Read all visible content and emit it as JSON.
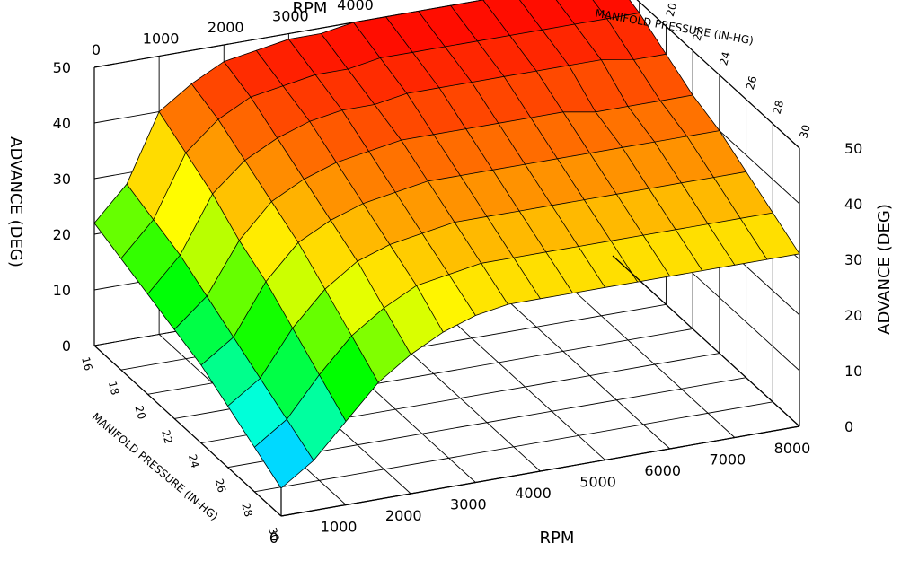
{
  "chart_data": {
    "type": "surface",
    "title": "",
    "x_axis": {
      "label": "RPM",
      "ticks": [
        0,
        1000,
        2000,
        3000,
        4000,
        5000,
        6000,
        7000,
        8000
      ],
      "range": [
        0,
        8000
      ]
    },
    "y_axis": {
      "label": "MANIFOLD PRESSURE (IN-HG)",
      "ticks": [
        16,
        18,
        20,
        22,
        24,
        26,
        28,
        30
      ],
      "range": [
        16,
        30
      ]
    },
    "z_axis": {
      "label": "ADVANCE (DEG)",
      "ticks": [
        0,
        10,
        20,
        30,
        40,
        50
      ],
      "range": [
        0,
        50
      ]
    },
    "grid": true,
    "colormap": [
      "#0000ff",
      "#00ffff",
      "#00ff00",
      "#ffff00",
      "#ff7f00",
      "#ff0000"
    ],
    "rpm": [
      0,
      500,
      1000,
      1500,
      2000,
      2500,
      3000,
      3500,
      4000,
      4500,
      5000,
      5500,
      6000,
      6500,
      7000,
      7500,
      8000
    ],
    "pressure": [
      16,
      18,
      20,
      22,
      24,
      26,
      28,
      30
    ],
    "advance": [
      [
        22,
        28,
        40,
        44,
        47,
        48,
        49,
        49,
        50,
        50,
        50,
        50,
        50,
        50,
        50,
        50,
        50
      ],
      [
        20,
        26,
        37,
        42,
        45,
        46,
        47,
        47,
        48,
        48,
        48,
        48,
        48,
        48,
        48,
        48,
        48
      ],
      [
        18,
        24,
        34,
        39,
        42,
        44,
        45,
        45,
        46,
        46,
        46,
        46,
        46,
        46,
        46,
        45,
        45
      ],
      [
        16,
        21,
        30,
        36,
        39,
        41,
        42,
        43,
        43,
        43,
        43,
        43,
        43,
        42,
        42,
        42,
        42
      ],
      [
        14,
        18,
        27,
        33,
        36,
        38,
        39,
        40,
        40,
        40,
        40,
        40,
        40,
        40,
        40,
        40,
        40
      ],
      [
        11,
        15,
        23,
        29,
        33,
        35,
        36,
        37,
        37,
        37,
        37,
        37,
        37,
        37,
        37,
        37,
        37
      ],
      [
        8,
        12,
        19,
        25,
        29,
        32,
        33,
        34,
        34,
        34,
        34,
        34,
        34,
        34,
        34,
        34,
        34
      ],
      [
        5,
        9,
        15,
        21,
        25,
        28,
        30,
        31,
        31,
        31,
        31,
        31,
        31,
        31,
        31,
        31,
        31
      ]
    ]
  }
}
